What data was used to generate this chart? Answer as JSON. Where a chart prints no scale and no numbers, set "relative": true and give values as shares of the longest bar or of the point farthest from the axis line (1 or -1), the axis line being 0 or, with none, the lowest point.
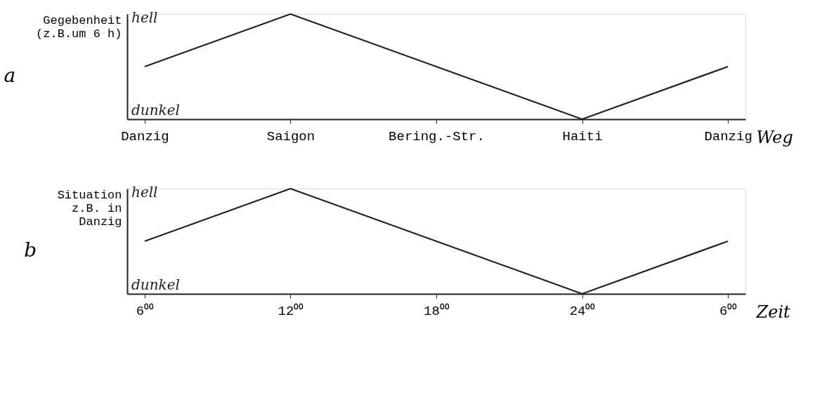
{
  "chart_data": [
    {
      "type": "line",
      "title": "a",
      "ylabel": "Gegebenheit\n(z.B.um 6 h)",
      "xlabel": "Weg",
      "relative": true,
      "categories": [
        "Danzig",
        "Saigon",
        "Bering.-Str.",
        "Haiti",
        "Danzig"
      ],
      "series": [
        {
          "color": "#222222",
          "values": [
            0.5,
            1,
            0.5,
            0,
            0.5
          ]
        }
      ],
      "annotations": [
        "hell",
        "dunkel"
      ],
      "grid": false,
      "legend": false,
      "marker": "none",
      "line_style": "solid"
    },
    {
      "type": "line",
      "title": "b",
      "ylabel": "Situation\nz.B. in\nDanzig",
      "xlabel": "Zeit",
      "relative": true,
      "categories": [
        "6⁰⁰",
        "12⁰⁰",
        "18⁰⁰",
        "24⁰⁰",
        "6⁰⁰"
      ],
      "series": [
        {
          "color": "#222222",
          "values": [
            0.5,
            1,
            0.5,
            0,
            0.5
          ]
        }
      ],
      "annotations": [
        "hell",
        "dunkel"
      ],
      "grid": false,
      "legend": false,
      "marker": "none",
      "line_style": "solid"
    }
  ]
}
